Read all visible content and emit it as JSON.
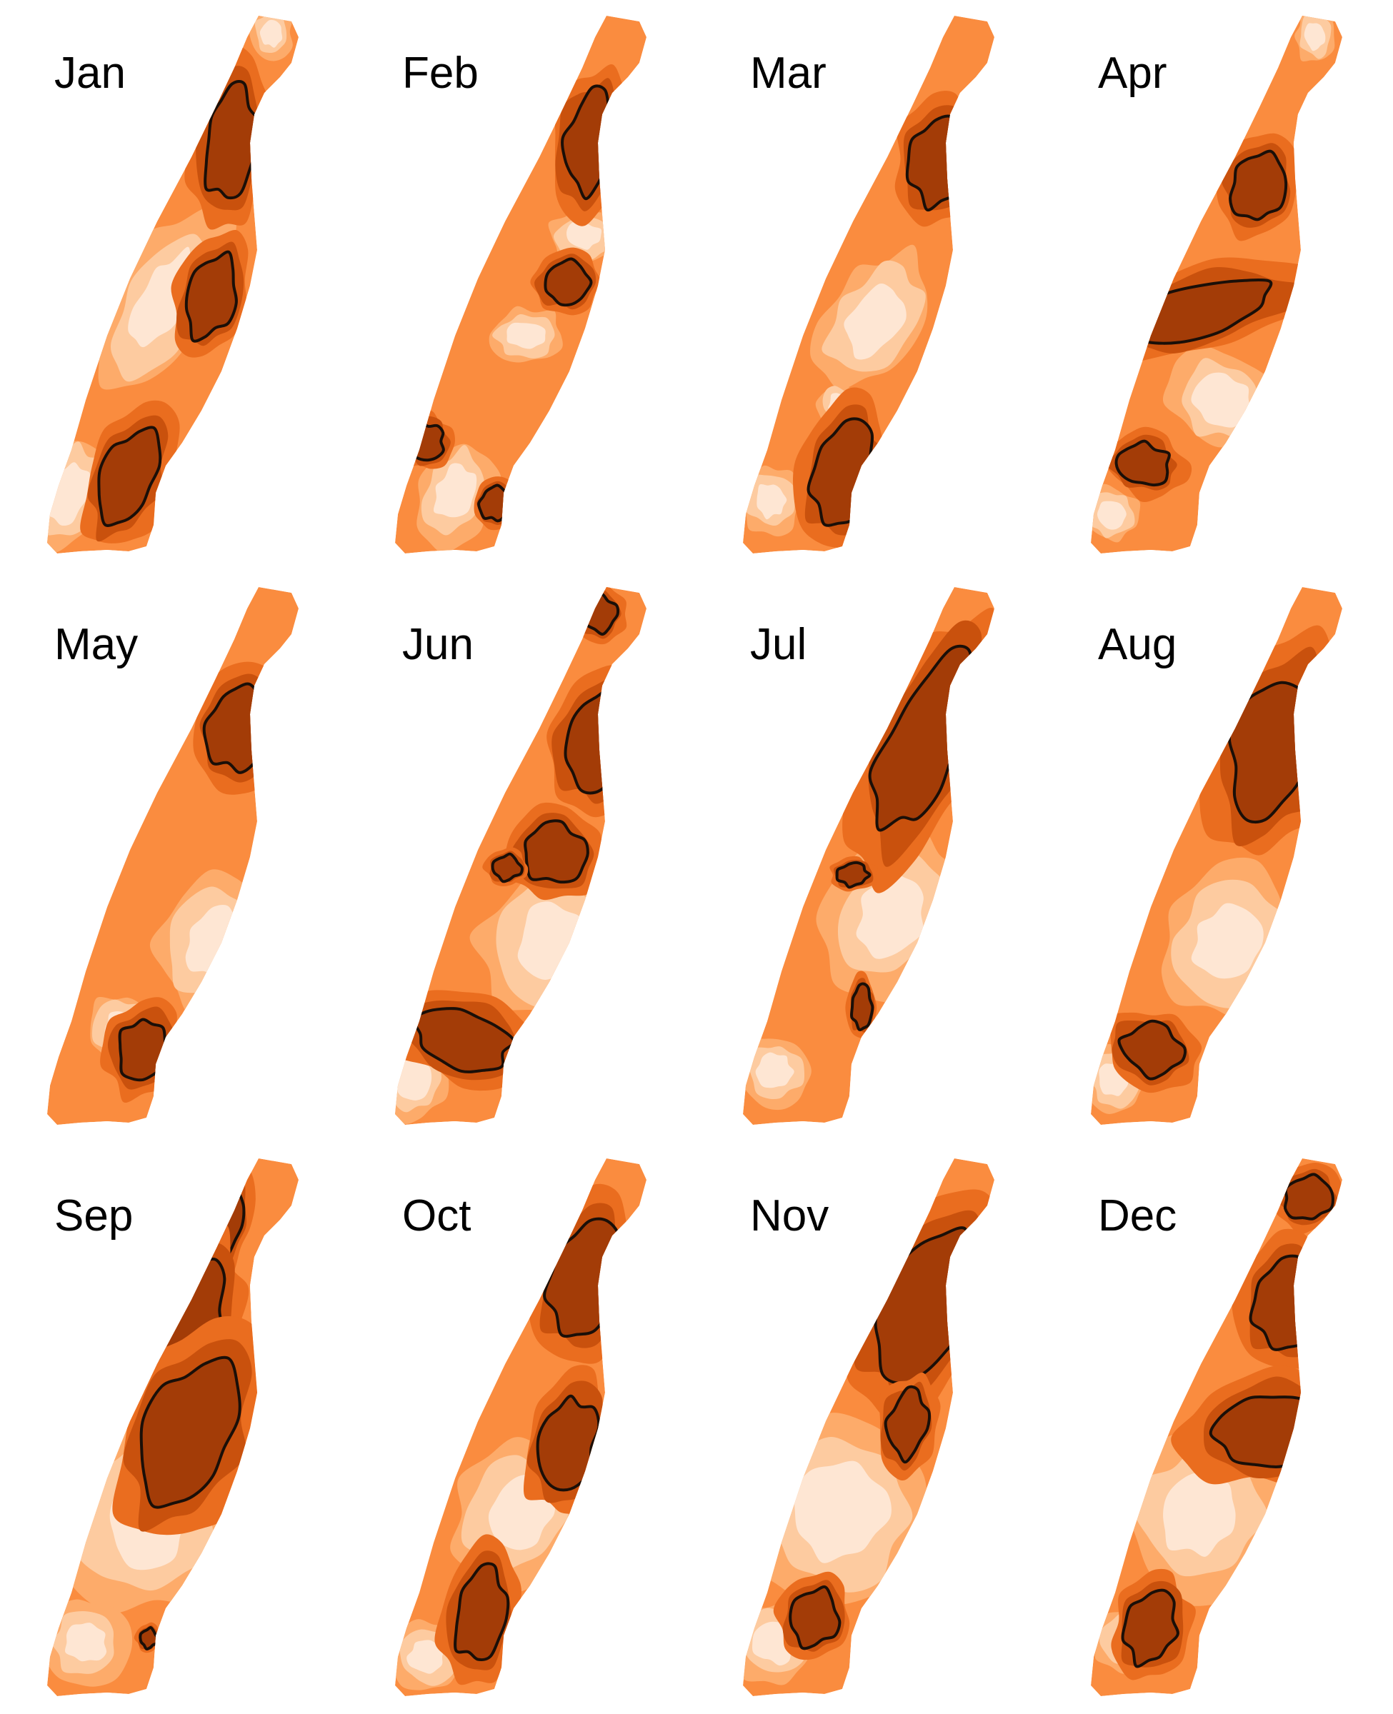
{
  "months": [
    "Jan",
    "Feb",
    "Mar",
    "Apr",
    "May",
    "Jun",
    "Jul",
    "Aug",
    "Sep",
    "Oct",
    "Nov",
    "Dec"
  ],
  "palette": [
    "#fee6d3",
    "#fdcba0",
    "#fdab6a",
    "#fa8c3f",
    "#ea6d1f",
    "#c9510d",
    "#a33c07"
  ],
  "contour_color": "#1a0f08"
}
